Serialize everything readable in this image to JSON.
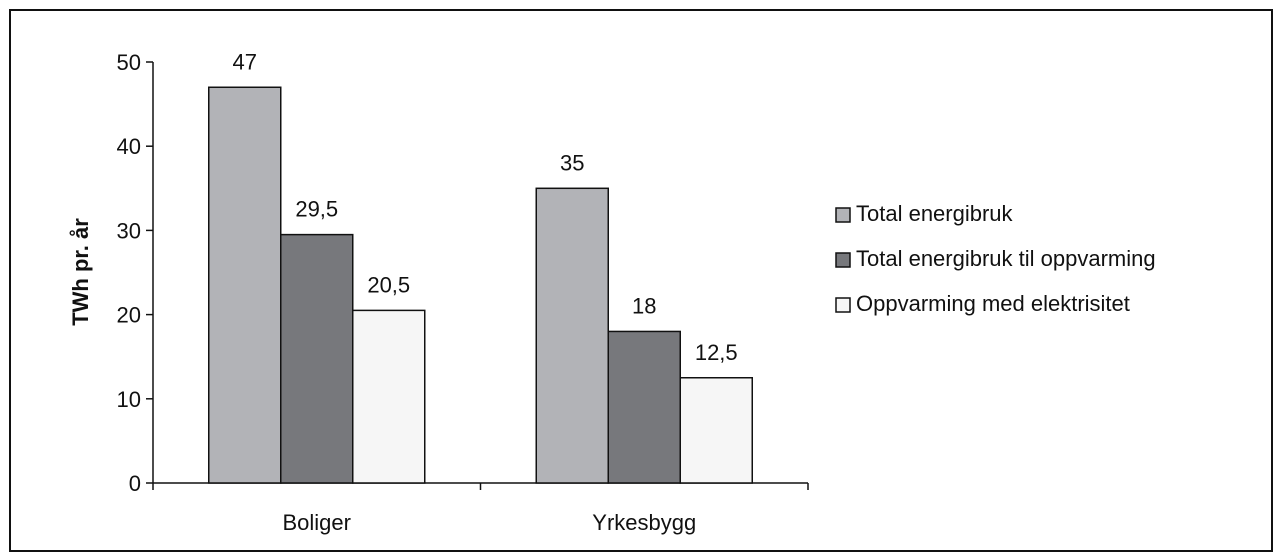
{
  "chart_data": {
    "type": "bar",
    "title": "",
    "xlabel": "",
    "ylabel": "TWh pr. år",
    "ylim": [
      0,
      50
    ],
    "yticks": [
      "0",
      "10",
      "20",
      "30",
      "40",
      "50"
    ],
    "categories": [
      "Boliger",
      "Yrkesbygg"
    ],
    "series": [
      {
        "name": "Total energibruk",
        "values": [
          47,
          35
        ],
        "labels": [
          "47",
          "35"
        ],
        "color": "#b2b3b7"
      },
      {
        "name": "Total energibruk til oppvarming",
        "values": [
          29.5,
          18
        ],
        "labels": [
          "29,5",
          "18"
        ],
        "color": "#77787c"
      },
      {
        "name": "Oppvarming med elektrisitet",
        "values": [
          20.5,
          12.5
        ],
        "labels": [
          "20,5",
          "12,5"
        ],
        "color": "#f6f6f6"
      }
    ],
    "grid": false,
    "legend": "right"
  }
}
